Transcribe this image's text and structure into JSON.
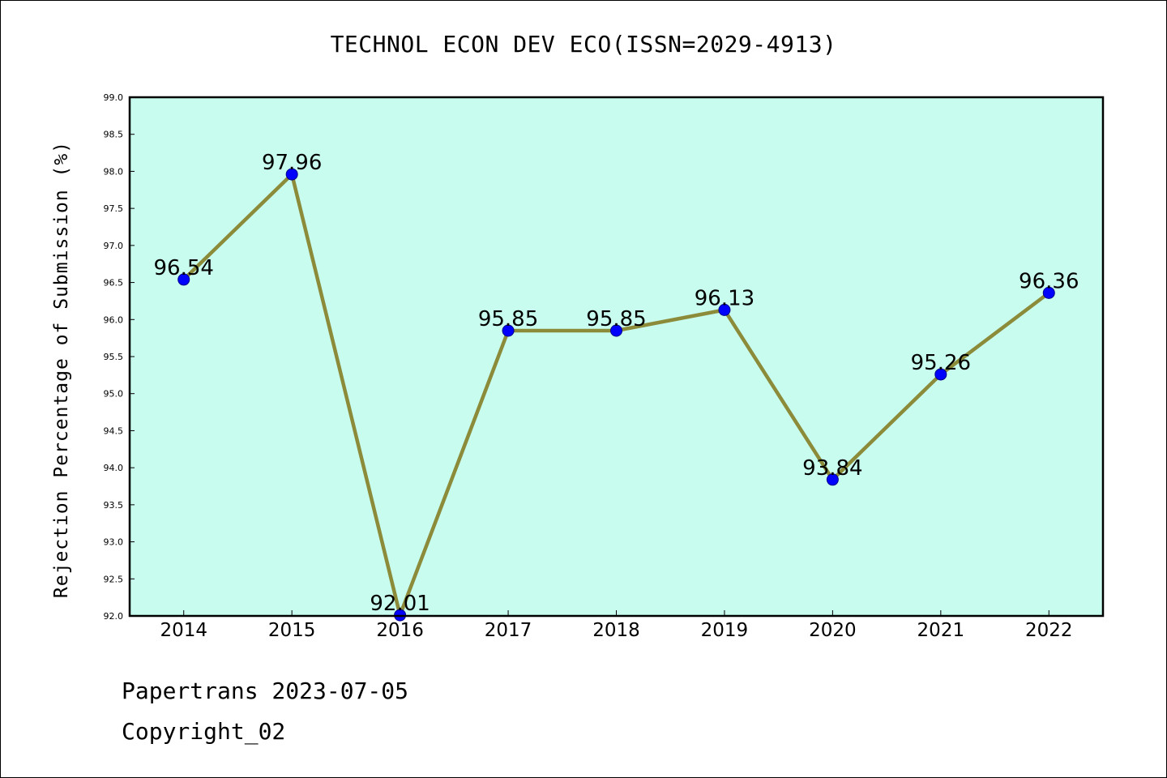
{
  "chart_data": {
    "type": "line",
    "title": "TECHNOL ECON DEV ECO(ISSN=2029-4913)",
    "xlabel": "",
    "ylabel": "Rejection Percentage of Submission (%)",
    "categories": [
      "2014",
      "2015",
      "2016",
      "2017",
      "2018",
      "2019",
      "2020",
      "2021",
      "2022"
    ],
    "series": [
      {
        "values": [
          96.54,
          97.96,
          92.01,
          95.85,
          95.85,
          96.13,
          93.84,
          95.26,
          96.36
        ]
      }
    ],
    "data_labels": [
      "96.54",
      "97.96",
      "92.01",
      "95.85",
      "95.85",
      "96.13",
      "93.84",
      "95.26",
      "96.36"
    ],
    "ylim": [
      92.0,
      99.0
    ],
    "yticks": [
      "92.0",
      "92.5",
      "93.0",
      "93.5",
      "94.0",
      "94.5",
      "95.0",
      "95.5",
      "96.0",
      "96.5",
      "97.0",
      "97.5",
      "98.0",
      "98.5",
      "99.0"
    ],
    "grid": false,
    "colors": {
      "plot_bg": "#c8fcee",
      "line": "#8b8b3a",
      "marker": "#0000ff",
      "marker_edge": "#00008b"
    }
  },
  "footer": {
    "date_line": "Papertrans 2023-07-05",
    "copyright": "Copyright_02"
  }
}
